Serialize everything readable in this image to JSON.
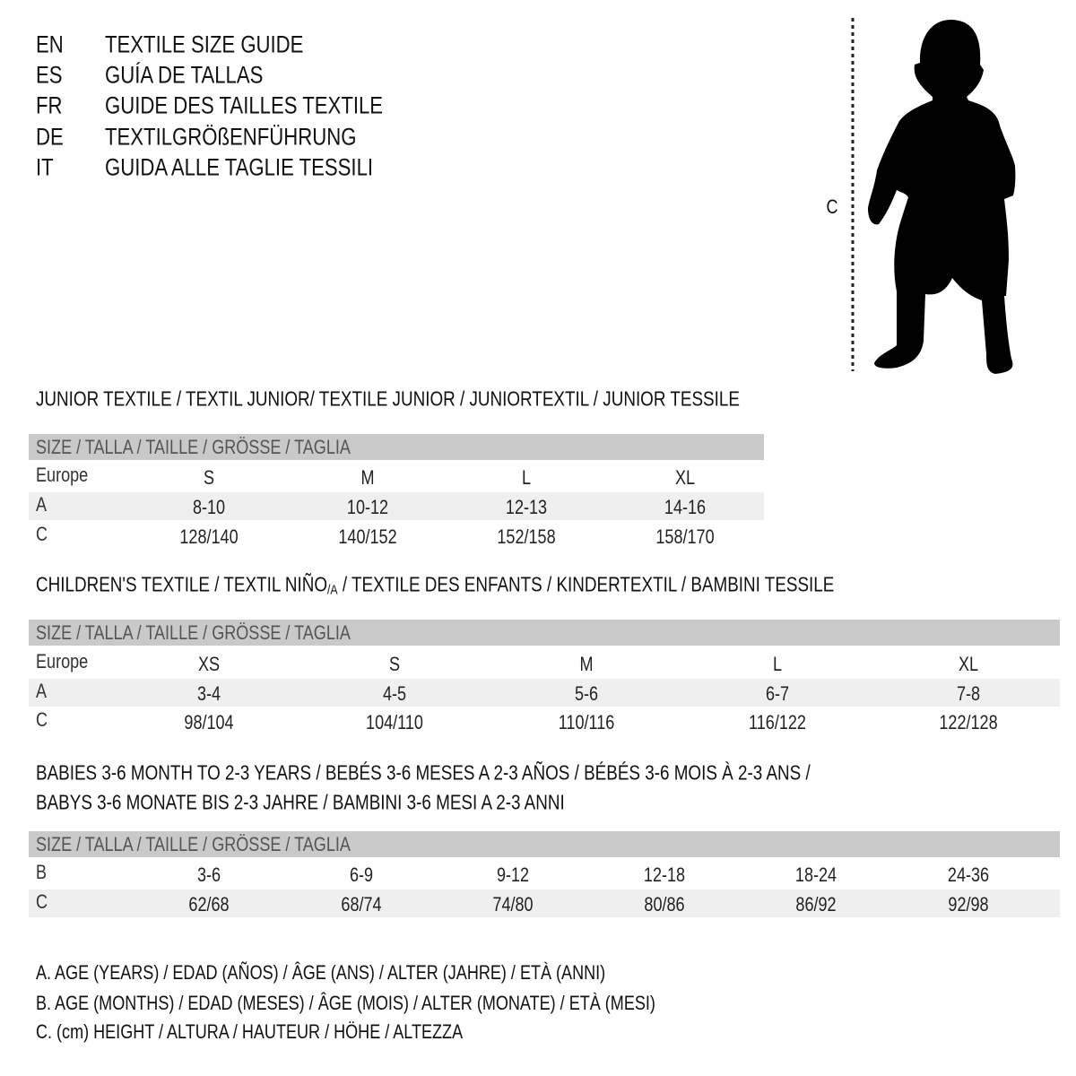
{
  "languages": [
    {
      "code": "EN",
      "text": "TEXTILE SIZE GUIDE"
    },
    {
      "code": "ES",
      "text": "GUÍA DE TALLAS"
    },
    {
      "code": "FR",
      "text": "GUIDE DES TAILLES TEXTILE"
    },
    {
      "code": "DE",
      "text": "TEXTILGRÖßENFÜHRUNG"
    },
    {
      "code": "IT",
      "text": "GUIDA ALLE TAGLIE TESSILI"
    }
  ],
  "figure": {
    "measure_label": "C",
    "icon": "child-silhouette-icon"
  },
  "colors": {
    "header_band": "#c9c9c9",
    "alt_row": "#efefef"
  },
  "junior": {
    "title": "JUNIOR TEXTILE / TEXTIL JUNIOR/ TEXTILE JUNIOR / JUNIORTEXTIL / JUNIOR TESSILE",
    "header": "SIZE / TALLA / TAILLE / GRÖSSE / TAGLIA",
    "rows": [
      {
        "label": "Europe",
        "values": [
          "S",
          "M",
          "L",
          "XL"
        ]
      },
      {
        "label": "A",
        "values": [
          "8-10",
          "10-12",
          "12-13",
          "14-16"
        ]
      },
      {
        "label": "C",
        "values": [
          "128/140",
          "140/152",
          "152/158",
          "158/170"
        ]
      }
    ]
  },
  "children": {
    "title_a": "CHILDREN'S TEXTILE / TEXTIL NIÑO",
    "title_sub": "/A",
    "title_b": " / TEXTILE DES ENFANTS / KINDERTEXTIL / BAMBINI TESSILE",
    "header": "SIZE / TALLA / TAILLE / GRÖSSE / TAGLIA",
    "rows": [
      {
        "label": "Europe",
        "values": [
          "XS",
          "S",
          "M",
          "L",
          "XL"
        ]
      },
      {
        "label": "A",
        "values": [
          "3-4",
          "4-5",
          "5-6",
          "6-7",
          "7-8"
        ]
      },
      {
        "label": "C",
        "values": [
          "98/104",
          "104/110",
          "110/116",
          "116/122",
          "122/128"
        ]
      }
    ]
  },
  "babies": {
    "title_line1": "BABIES 3-6 MONTH TO 2-3 YEARS / BEBÉS 3-6 MESES A 2-3 AÑOS / BÉBÉS 3-6 MOIS À 2-3 ANS /",
    "title_line2": "BABYS 3-6 MONATE BIS 2-3 JAHRE / BAMBINI 3-6 MESI A 2-3 ANNI",
    "header": "SIZE / TALLA / TAILLE / GRÖSSE / TAGLIA",
    "rows": [
      {
        "label": "B",
        "values": [
          "3-6",
          "6-9",
          "9-12",
          "12-18",
          "18-24",
          "24-36"
        ]
      },
      {
        "label": "C",
        "values": [
          "62/68",
          "68/74",
          "74/80",
          "80/86",
          "86/92",
          "92/98"
        ]
      }
    ]
  },
  "legend": [
    "A. AGE (YEARS) / EDAD (AÑOS) / ÂGE (ANS) / ALTER (JAHRE) / ETÀ (ANNI)",
    "B. AGE (MONTHS) / EDAD (MESES) / ÂGE (MOIS) / ALTER (MONATE) / ETÀ (MESI)",
    "C. (cm) HEIGHT / ALTURA / HAUTEUR / HÖHE / ALTEZZA"
  ]
}
